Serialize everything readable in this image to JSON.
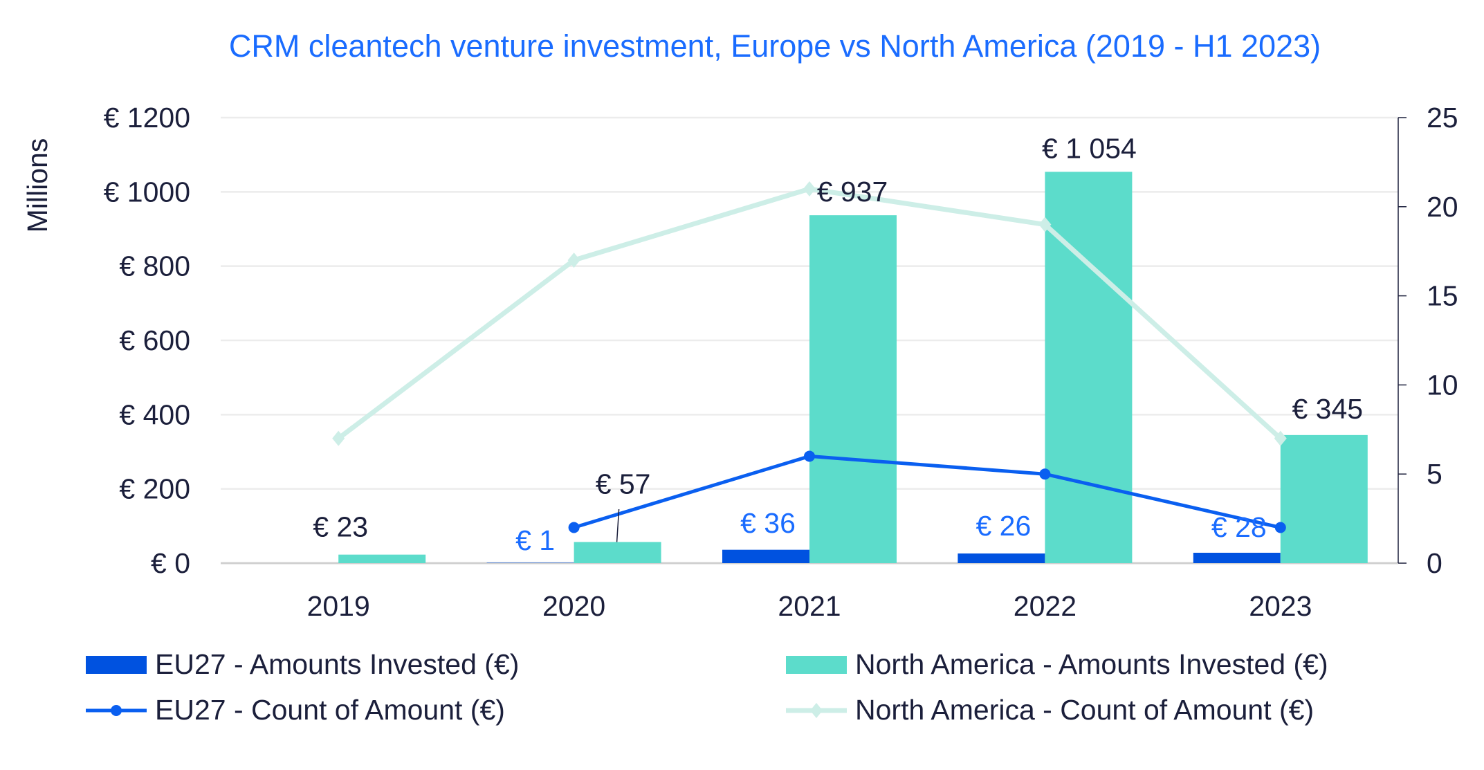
{
  "chart_data": {
    "type": "bar",
    "title": "CRM cleantech venture investment, Europe vs North America (2019 - H1 2023)",
    "ylabel": "Millions",
    "ylim": [
      0,
      1200
    ],
    "y2lim": [
      0,
      25
    ],
    "yticks": [
      "€ 0",
      "€ 200",
      "€ 400",
      "€ 600",
      "€ 800",
      "€ 1000",
      "€ 1200"
    ],
    "ytick_values": [
      0,
      200,
      400,
      600,
      800,
      1000,
      1200
    ],
    "y2ticks": [
      "0",
      "5",
      "10",
      "15",
      "20",
      "25"
    ],
    "y2tick_values": [
      0,
      5,
      10,
      15,
      20,
      25
    ],
    "categories": [
      "2019",
      "2020",
      "2021",
      "2022",
      "2023"
    ],
    "grid": true,
    "legend_position": "bottom",
    "series": [
      {
        "name": "EU27 - Amounts Invested (€)",
        "kind": "bar",
        "axis": "left",
        "color": "#0052e0",
        "values": [
          null,
          1,
          36,
          26,
          28
        ],
        "labels": [
          null,
          "€ 1",
          "€ 36",
          "€ 26",
          "€ 28"
        ]
      },
      {
        "name": "North America - Amounts Invested (€)",
        "kind": "bar",
        "axis": "left",
        "color": "#5cdccb",
        "values": [
          23,
          57,
          937,
          1054,
          345
        ],
        "labels": [
          "€ 23",
          "€ 57",
          "€ 937",
          "€ 1 054",
          "€ 345"
        ]
      },
      {
        "name": "EU27 - Count of Amount (€)",
        "kind": "line",
        "axis": "right",
        "color": "#0a5ff0",
        "values": [
          null,
          2,
          6,
          5,
          2
        ]
      },
      {
        "name": "North America - Count of Amount (€)",
        "kind": "line",
        "axis": "right",
        "color": "#cdeee7",
        "values": [
          7,
          17,
          21,
          19,
          7
        ]
      }
    ]
  }
}
